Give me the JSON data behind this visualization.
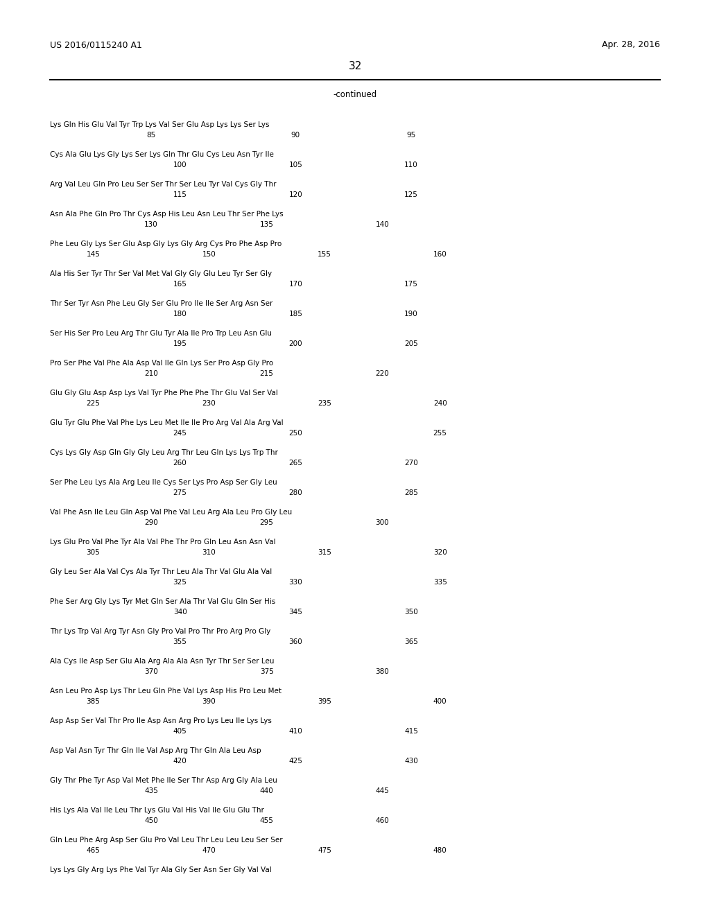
{
  "header_left": "US 2016/0115240 A1",
  "header_right": "Apr. 28, 2016",
  "page_number": "32",
  "continued_label": "-continued",
  "background_color": "#ffffff",
  "text_color": "#000000",
  "seq_font_size": 7.5,
  "header_font_size": 9.0,
  "page_num_font_size": 11.0,
  "lines": [
    {
      "seq": "Lys Gln His Glu Val Tyr Trp Lys Val Ser Glu Asp Lys Lys Ser Lys",
      "nums": [
        [
          "85",
          2
        ],
        [
          "90",
          7
        ],
        [
          "95",
          11
        ]
      ]
    },
    {
      "seq": "Cys Ala Glu Lys Gly Lys Ser Lys Gln Thr Glu Cys Leu Asn Tyr Ile",
      "nums": [
        [
          "100",
          3
        ],
        [
          "105",
          7
        ],
        [
          "110",
          11
        ]
      ]
    },
    {
      "seq": "Arg Val Leu Gln Pro Leu Ser Ser Thr Ser Leu Tyr Val Cys Gly Thr",
      "nums": [
        [
          "115",
          3
        ],
        [
          "120",
          7
        ],
        [
          "125",
          11
        ]
      ]
    },
    {
      "seq": "Asn Ala Phe Gln Pro Thr Cys Asp His Leu Asn Leu Thr Ser Phe Lys",
      "nums": [
        [
          "130",
          2
        ],
        [
          "135",
          6
        ],
        [
          "140",
          10
        ]
      ]
    },
    {
      "seq": "Phe Leu Gly Lys Ser Glu Asp Gly Lys Gly Arg Cys Pro Phe Asp Pro",
      "nums": [
        [
          "145",
          0
        ],
        [
          "150",
          4
        ],
        [
          "155",
          8
        ],
        [
          "160",
          12
        ]
      ]
    },
    {
      "seq": "Ala His Ser Tyr Thr Ser Val Met Val Gly Gly Glu Leu Tyr Ser Gly",
      "nums": [
        [
          "165",
          3
        ],
        [
          "170",
          7
        ],
        [
          "175",
          11
        ]
      ]
    },
    {
      "seq": "Thr Ser Tyr Asn Phe Leu Gly Ser Glu Pro Ile Ile Ser Arg Asn Ser",
      "nums": [
        [
          "180",
          3
        ],
        [
          "185",
          7
        ],
        [
          "190",
          11
        ]
      ]
    },
    {
      "seq": "Ser His Ser Pro Leu Arg Thr Glu Tyr Ala Ile Pro Trp Leu Asn Glu",
      "nums": [
        [
          "195",
          3
        ],
        [
          "200",
          7
        ],
        [
          "205",
          11
        ]
      ]
    },
    {
      "seq": "Pro Ser Phe Val Phe Ala Asp Val Ile Gln Lys Ser Pro Asp Gly Pro",
      "nums": [
        [
          "210",
          2
        ],
        [
          "215",
          6
        ],
        [
          "220",
          10
        ]
      ]
    },
    {
      "seq": "Glu Gly Glu Asp Asp Lys Val Tyr Phe Phe Phe Thr Glu Val Ser Val",
      "nums": [
        [
          "225",
          0
        ],
        [
          "230",
          4
        ],
        [
          "235",
          8
        ],
        [
          "240",
          12
        ]
      ]
    },
    {
      "seq": "Glu Tyr Glu Phe Val Phe Lys Leu Met Ile Ile Pro Arg Val Ala Arg Val",
      "nums": [
        [
          "245",
          3
        ],
        [
          "250",
          7
        ],
        [
          "255",
          12
        ]
      ]
    },
    {
      "seq": "Cys Lys Gly Asp Gln Gly Gly Leu Arg Thr Leu Gln Lys Lys Trp Thr",
      "nums": [
        [
          "260",
          3
        ],
        [
          "265",
          7
        ],
        [
          "270",
          11
        ]
      ]
    },
    {
      "seq": "Ser Phe Leu Lys Ala Arg Leu Ile Cys Ser Lys Pro Asp Ser Gly Leu",
      "nums": [
        [
          "275",
          3
        ],
        [
          "280",
          7
        ],
        [
          "285",
          11
        ]
      ]
    },
    {
      "seq": "Val Phe Asn Ile Leu Gln Asp Val Phe Val Leu Arg Ala Leu Pro Gly Leu",
      "nums": [
        [
          "290",
          2
        ],
        [
          "295",
          6
        ],
        [
          "300",
          10
        ]
      ]
    },
    {
      "seq": "Lys Glu Pro Val Phe Tyr Ala Val Phe Thr Pro Gln Leu Asn Asn Val",
      "nums": [
        [
          "305",
          0
        ],
        [
          "310",
          4
        ],
        [
          "315",
          8
        ],
        [
          "320",
          12
        ]
      ]
    },
    {
      "seq": "Gly Leu Ser Ala Val Cys Ala Tyr Thr Leu Ala Thr Val Glu Ala Val",
      "nums": [
        [
          "325",
          3
        ],
        [
          "330",
          7
        ],
        [
          "335",
          12
        ]
      ]
    },
    {
      "seq": "Phe Ser Arg Gly Lys Tyr Met Gln Ser Ala Thr Val Glu Gln Ser His",
      "nums": [
        [
          "340",
          3
        ],
        [
          "345",
          7
        ],
        [
          "350",
          11
        ]
      ]
    },
    {
      "seq": "Thr Lys Trp Val Arg Tyr Asn Gly Pro Val Pro Thr Pro Arg Pro Gly",
      "nums": [
        [
          "355",
          3
        ],
        [
          "360",
          7
        ],
        [
          "365",
          11
        ]
      ]
    },
    {
      "seq": "Ala Cys Ile Asp Ser Glu Ala Arg Ala Ala Asn Tyr Thr Ser Ser Leu",
      "nums": [
        [
          "370",
          2
        ],
        [
          "375",
          6
        ],
        [
          "380",
          10
        ]
      ]
    },
    {
      "seq": "Asn Leu Pro Asp Lys Thr Leu Gln Phe Val Lys Asp His Pro Leu Met",
      "nums": [
        [
          "385",
          0
        ],
        [
          "390",
          4
        ],
        [
          "395",
          8
        ],
        [
          "400",
          12
        ]
      ]
    },
    {
      "seq": "Asp Asp Ser Val Thr Pro Ile Asp Asn Arg Pro Lys Leu Ile Lys Lys",
      "nums": [
        [
          "405",
          3
        ],
        [
          "410",
          7
        ],
        [
          "415",
          11
        ]
      ]
    },
    {
      "seq": "Asp Val Asn Tyr Thr Gln Ile Val Asp Arg Thr Gln Ala Leu Asp",
      "nums": [
        [
          "420",
          3
        ],
        [
          "425",
          7
        ],
        [
          "430",
          11
        ]
      ]
    },
    {
      "seq": "Gly Thr Phe Tyr Asp Val Met Phe Ile Ser Thr Asp Arg Gly Ala Leu",
      "nums": [
        [
          "435",
          2
        ],
        [
          "440",
          6
        ],
        [
          "445",
          10
        ]
      ]
    },
    {
      "seq": "His Lys Ala Val Ile Leu Thr Lys Glu Val His Val Ile Glu Glu Thr",
      "nums": [
        [
          "450",
          2
        ],
        [
          "455",
          6
        ],
        [
          "460",
          10
        ]
      ]
    },
    {
      "seq": "Gln Leu Phe Arg Asp Ser Glu Pro Val Leu Thr Leu Leu Leu Ser Ser",
      "nums": [
        [
          "465",
          0
        ],
        [
          "470",
          4
        ],
        [
          "475",
          8
        ],
        [
          "480",
          12
        ]
      ]
    },
    {
      "seq": "Lys Lys Gly Arg Lys Phe Val Tyr Ala Gly Ser Asn Ser Gly Val Val",
      "nums": []
    }
  ]
}
